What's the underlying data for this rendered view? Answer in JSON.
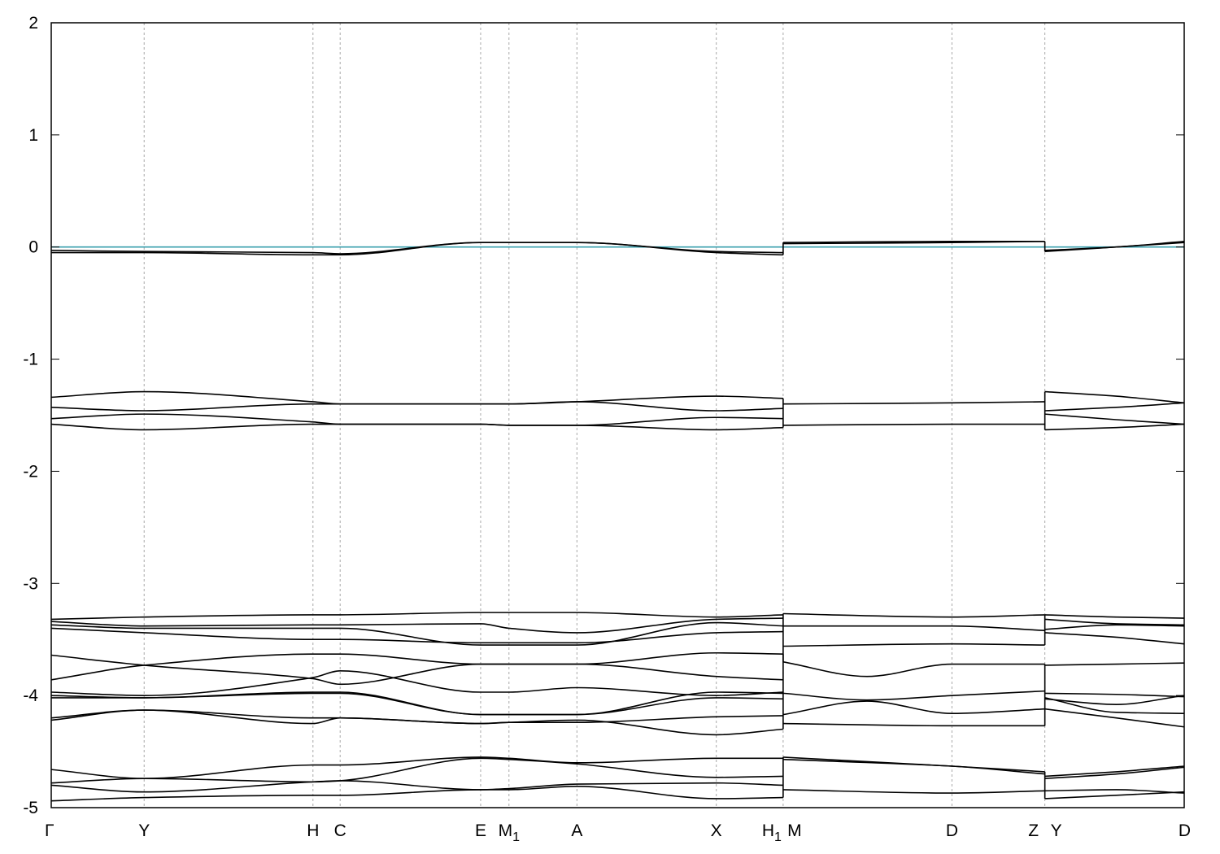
{
  "chart_data": {
    "type": "line",
    "title": "",
    "xlabel": "",
    "ylabel": "",
    "ylim": [
      -5,
      2
    ],
    "y_ticks": [
      "2",
      "1",
      "0",
      "-1",
      "-2",
      "-3",
      "-4",
      "-5"
    ],
    "grid": "vertical dashed lines at high-symmetry points",
    "x_points": [
      {
        "label": "Γ",
        "sub": "",
        "x": 0.0
      },
      {
        "label": "Y",
        "sub": "",
        "x": 0.082
      },
      {
        "label": "H",
        "sub": "",
        "x": 0.231
      },
      {
        "label": "C",
        "sub": "",
        "x": 0.255
      },
      {
        "label": "E",
        "sub": "",
        "x": 0.379
      },
      {
        "label": "M",
        "sub": "1",
        "x": 0.404
      },
      {
        "label": "A",
        "sub": "",
        "x": 0.464
      },
      {
        "label": "X",
        "sub": "",
        "x": 0.587
      },
      {
        "label": "H",
        "sub": "1",
        "x": 0.646
      },
      {
        "label": "M",
        "sub": "",
        "x": 0.646
      },
      {
        "label": "D",
        "sub": "",
        "x": 0.795
      },
      {
        "label": "Z",
        "sub": "",
        "x": 0.877
      },
      {
        "label": "Y",
        "sub": "",
        "x": 0.877
      },
      {
        "label": "D",
        "sub": "",
        "x": 1.0
      }
    ],
    "fermi_level": 0,
    "colors": {
      "bands": "#000000",
      "fermi": "#3a9fae",
      "grid": "#a8a8a8"
    },
    "segments": [
      {
        "x_range": [
          0.0,
          0.646
        ],
        "bands": [
          {
            "x": [
              0,
              0.082,
              0.231,
              0.255,
              0.379,
              0.404,
              0.464,
              0.587,
              0.646
            ],
            "y": [
              -0.05,
              -0.05,
              -0.07,
              -0.07,
              0.04,
              0.04,
              0.04,
              -0.05,
              -0.07
            ]
          },
          {
            "x": [
              0,
              0.082,
              0.231,
              0.255,
              0.379,
              0.404,
              0.464,
              0.587,
              0.646
            ],
            "y": [
              -0.03,
              -0.04,
              -0.05,
              -0.06,
              0.04,
              0.04,
              0.04,
              -0.04,
              -0.05
            ]
          },
          {
            "x": [
              0,
              0.082,
              0.231,
              0.255,
              0.379,
              0.404,
              0.464,
              0.587,
              0.646
            ],
            "y": [
              -1.34,
              -1.29,
              -1.38,
              -1.4,
              -1.4,
              -1.4,
              -1.38,
              -1.33,
              -1.35
            ]
          },
          {
            "x": [
              0,
              0.082,
              0.231,
              0.255,
              0.379,
              0.404,
              0.464,
              0.587,
              0.646
            ],
            "y": [
              -1.43,
              -1.46,
              -1.4,
              -1.4,
              -1.4,
              -1.4,
              -1.38,
              -1.46,
              -1.44
            ]
          },
          {
            "x": [
              0,
              0.082,
              0.231,
              0.255,
              0.379,
              0.404,
              0.464,
              0.587,
              0.646
            ],
            "y": [
              -1.53,
              -1.49,
              -1.56,
              -1.58,
              -1.58,
              -1.59,
              -1.59,
              -1.52,
              -1.53
            ]
          },
          {
            "x": [
              0,
              0.082,
              0.231,
              0.255,
              0.379,
              0.404,
              0.464,
              0.587,
              0.646
            ],
            "y": [
              -1.58,
              -1.63,
              -1.58,
              -1.58,
              -1.58,
              -1.59,
              -1.59,
              -1.63,
              -1.61
            ]
          },
          {
            "x": [
              0,
              0.082,
              0.231,
              0.255,
              0.379,
              0.404,
              0.464,
              0.587,
              0.646
            ],
            "y": [
              -3.32,
              -3.3,
              -3.28,
              -3.28,
              -3.26,
              -3.26,
              -3.26,
              -3.3,
              -3.28
            ]
          },
          {
            "x": [
              0,
              0.082,
              0.231,
              0.255,
              0.379,
              0.404,
              0.464,
              0.587,
              0.646
            ],
            "y": [
              -3.34,
              -3.38,
              -3.37,
              -3.37,
              -3.36,
              -3.4,
              -3.44,
              -3.32,
              -3.31
            ]
          },
          {
            "x": [
              0,
              0.082,
              0.231,
              0.255,
              0.379,
              0.404,
              0.464,
              0.587,
              0.646
            ],
            "y": [
              -3.37,
              -3.4,
              -3.4,
              -3.4,
              -3.55,
              -3.55,
              -3.55,
              -3.35,
              -3.38
            ]
          },
          {
            "x": [
              0,
              0.082,
              0.231,
              0.255,
              0.379,
              0.404,
              0.464,
              0.587,
              0.646
            ],
            "y": [
              -3.4,
              -3.44,
              -3.5,
              -3.5,
              -3.53,
              -3.53,
              -3.53,
              -3.44,
              -3.43
            ]
          },
          {
            "x": [
              0,
              0.082,
              0.231,
              0.255,
              0.379,
              0.404,
              0.464,
              0.587,
              0.646
            ],
            "y": [
              -3.64,
              -3.73,
              -3.85,
              -3.9,
              -3.72,
              -3.72,
              -3.72,
              -3.62,
              -3.63
            ]
          },
          {
            "x": [
              0,
              0.082,
              0.231,
              0.255,
              0.379,
              0.404,
              0.464,
              0.587,
              0.646
            ],
            "y": [
              -3.86,
              -3.73,
              -3.63,
              -3.63,
              -3.72,
              -3.72,
              -3.72,
              -3.83,
              -3.86
            ]
          },
          {
            "x": [
              0,
              0.082,
              0.231,
              0.255,
              0.379,
              0.404,
              0.464,
              0.587,
              0.646
            ],
            "y": [
              -3.97,
              -4.0,
              -3.84,
              -3.78,
              -3.97,
              -3.97,
              -3.93,
              -4.0,
              -3.97
            ]
          },
          {
            "x": [
              0,
              0.082,
              0.231,
              0.255,
              0.379,
              0.404,
              0.464,
              0.587,
              0.646
            ],
            "y": [
              -4.0,
              -4.02,
              -3.97,
              -3.97,
              -4.17,
              -4.17,
              -4.17,
              -3.97,
              -3.98
            ]
          },
          {
            "x": [
              0,
              0.082,
              0.231,
              0.255,
              0.379,
              0.404,
              0.464,
              0.587,
              0.646
            ],
            "y": [
              -4.02,
              -4.02,
              -3.98,
              -3.98,
              -4.17,
              -4.17,
              -4.17,
              -4.02,
              -4.03
            ]
          },
          {
            "x": [
              0,
              0.082,
              0.231,
              0.255,
              0.379,
              0.404,
              0.464,
              0.587,
              0.646
            ],
            "y": [
              -4.2,
              -4.13,
              -4.2,
              -4.2,
              -4.25,
              -4.24,
              -4.24,
              -4.19,
              -4.18
            ]
          },
          {
            "x": [
              0,
              0.082,
              0.231,
              0.255,
              0.379,
              0.404,
              0.464,
              0.587,
              0.646
            ],
            "y": [
              -4.22,
              -4.13,
              -4.25,
              -4.2,
              -4.25,
              -4.24,
              -4.22,
              -4.35,
              -4.3
            ]
          },
          {
            "x": [
              0,
              0.082,
              0.231,
              0.255,
              0.379,
              0.404,
              0.464,
              0.587,
              0.646
            ],
            "y": [
              -4.66,
              -4.74,
              -4.62,
              -4.62,
              -4.55,
              -4.56,
              -4.6,
              -4.56,
              -4.56
            ]
          },
          {
            "x": [
              0,
              0.082,
              0.231,
              0.255,
              0.379,
              0.404,
              0.464,
              0.587,
              0.646
            ],
            "y": [
              -4.78,
              -4.74,
              -4.77,
              -4.76,
              -4.56,
              -4.57,
              -4.61,
              -4.73,
              -4.72
            ]
          },
          {
            "x": [
              0,
              0.082,
              0.231,
              0.255,
              0.379,
              0.404,
              0.464,
              0.587,
              0.646
            ],
            "y": [
              -4.8,
              -4.86,
              -4.77,
              -4.76,
              -4.84,
              -4.83,
              -4.79,
              -4.78,
              -4.8
            ]
          },
          {
            "x": [
              0,
              0.082,
              0.231,
              0.255,
              0.379,
              0.404,
              0.464,
              0.587,
              0.646
            ],
            "y": [
              -4.94,
              -4.91,
              -4.89,
              -4.89,
              -4.84,
              -4.84,
              -4.81,
              -4.92,
              -4.91
            ]
          }
        ]
      },
      {
        "x_range": [
          0.646,
          0.877
        ],
        "bands": [
          {
            "x": [
              0.646,
              0.795,
              0.877
            ],
            "y": [
              0.04,
              0.05,
              0.05
            ]
          },
          {
            "x": [
              0.646,
              0.795,
              0.877
            ],
            "y": [
              0.03,
              0.04,
              0.05
            ]
          },
          {
            "x": [
              0.646,
              0.795,
              0.877
            ],
            "y": [
              -1.4,
              -1.39,
              -1.38
            ]
          },
          {
            "x": [
              0.646,
              0.795,
              0.877
            ],
            "y": [
              -1.59,
              -1.58,
              -1.58
            ]
          },
          {
            "x": [
              0.646,
              0.795,
              0.877
            ],
            "y": [
              -3.27,
              -3.3,
              -3.28
            ]
          },
          {
            "x": [
              0.646,
              0.795,
              0.877
            ],
            "y": [
              -3.38,
              -3.38,
              -3.42
            ]
          },
          {
            "x": [
              0.646,
              0.795,
              0.877
            ],
            "y": [
              -3.56,
              -3.54,
              -3.55
            ]
          },
          {
            "x": [
              0.646,
              0.72,
              0.795,
              0.877
            ],
            "y": [
              -3.7,
              -3.83,
              -3.72,
              -3.72
            ]
          },
          {
            "x": [
              0.646,
              0.72,
              0.795,
              0.877
            ],
            "y": [
              -3.98,
              -4.04,
              -4.0,
              -3.96
            ]
          },
          {
            "x": [
              0.646,
              0.72,
              0.795,
              0.877
            ],
            "y": [
              -4.17,
              -4.05,
              -4.16,
              -4.12
            ]
          },
          {
            "x": [
              0.646,
              0.795,
              0.877
            ],
            "y": [
              -4.25,
              -4.27,
              -4.27
            ]
          },
          {
            "x": [
              0.646,
              0.795,
              0.877
            ],
            "y": [
              -4.55,
              -4.63,
              -4.68
            ]
          },
          {
            "x": [
              0.646,
              0.795,
              0.877
            ],
            "y": [
              -4.57,
              -4.63,
              -4.7
            ]
          },
          {
            "x": [
              0.646,
              0.795,
              0.877
            ],
            "y": [
              -4.84,
              -4.87,
              -4.85
            ]
          }
        ]
      },
      {
        "x_range": [
          0.877,
          1.0
        ],
        "bands": [
          {
            "x": [
              0.877,
              0.94,
              1.0
            ],
            "y": [
              -0.04,
              0.0,
              0.04
            ]
          },
          {
            "x": [
              0.877,
              0.94,
              1.0
            ],
            "y": [
              -0.03,
              0.0,
              0.05
            ]
          },
          {
            "x": [
              0.877,
              0.94,
              1.0
            ],
            "y": [
              -1.29,
              -1.33,
              -1.39
            ]
          },
          {
            "x": [
              0.877,
              0.94,
              1.0
            ],
            "y": [
              -1.46,
              -1.43,
              -1.39
            ]
          },
          {
            "x": [
              0.877,
              0.94,
              1.0
            ],
            "y": [
              -1.49,
              -1.54,
              -1.58
            ]
          },
          {
            "x": [
              0.877,
              0.94,
              1.0
            ],
            "y": [
              -1.63,
              -1.61,
              -1.58
            ]
          },
          {
            "x": [
              0.877,
              0.94,
              1.0
            ],
            "y": [
              -3.28,
              -3.3,
              -3.31
            ]
          },
          {
            "x": [
              0.877,
              0.94,
              1.0
            ],
            "y": [
              -3.32,
              -3.36,
              -3.37
            ]
          },
          {
            "x": [
              0.877,
              0.94,
              1.0
            ],
            "y": [
              -3.41,
              -3.37,
              -3.38
            ]
          },
          {
            "x": [
              0.877,
              0.94,
              1.0
            ],
            "y": [
              -3.44,
              -3.48,
              -3.54
            ]
          },
          {
            "x": [
              0.877,
              0.94,
              1.0
            ],
            "y": [
              -3.73,
              -3.72,
              -3.71
            ]
          },
          {
            "x": [
              0.877,
              0.94,
              1.0
            ],
            "y": [
              -3.98,
              -3.99,
              -4.01
            ]
          },
          {
            "x": [
              0.877,
              0.94,
              1.0
            ],
            "y": [
              -4.03,
              -4.08,
              -4.0
            ]
          },
          {
            "x": [
              0.877,
              0.94,
              1.0
            ],
            "y": [
              -4.02,
              -4.15,
              -4.16
            ]
          },
          {
            "x": [
              0.877,
              0.94,
              1.0
            ],
            "y": [
              -4.12,
              -4.2,
              -4.28
            ]
          },
          {
            "x": [
              0.877,
              0.94,
              1.0
            ],
            "y": [
              -4.72,
              -4.68,
              -4.63
            ]
          },
          {
            "x": [
              0.877,
              0.94,
              1.0
            ],
            "y": [
              -4.74,
              -4.7,
              -4.64
            ]
          },
          {
            "x": [
              0.877,
              0.94,
              1.0
            ],
            "y": [
              -4.85,
              -4.84,
              -4.87
            ]
          },
          {
            "x": [
              0.877,
              0.94,
              1.0
            ],
            "y": [
              -4.92,
              -4.89,
              -4.86
            ]
          }
        ]
      }
    ]
  }
}
